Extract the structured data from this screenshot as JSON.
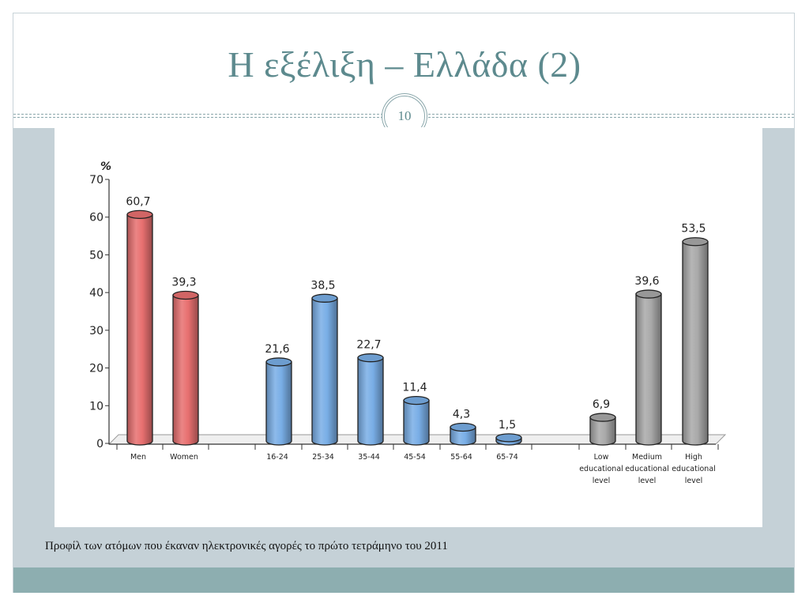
{
  "slide": {
    "title": "Η εξέλιξη – Ελλάδα (2)",
    "slide_number": "10",
    "caption": "Προφίλ των ατόμων που έκαναν ηλεκτρονικές αγορές το πρώτο τετράμηνο του 2011",
    "colors": {
      "title": "#5d8a8e",
      "content_band": "#c5d1d7",
      "footer_band": "#8daeb0"
    }
  },
  "chart_data": {
    "type": "bar",
    "ylabel": "%",
    "ylim": [
      0,
      70
    ],
    "yticks": [
      0,
      10,
      20,
      30,
      40,
      50,
      60,
      70
    ],
    "grid": false,
    "categories": [
      "Men",
      "Women",
      "16-24",
      "25-34",
      "35-44",
      "45-54",
      "55-64",
      "65-74",
      "Low educational level",
      "Medium educational level",
      "High educational level"
    ],
    "category_lines": [
      [
        "Men"
      ],
      [
        "Women"
      ],
      [
        "16-24"
      ],
      [
        "25-34"
      ],
      [
        "35-44"
      ],
      [
        "45-54"
      ],
      [
        "55-64"
      ],
      [
        "65-74"
      ],
      [
        "Low",
        "educational",
        "level"
      ],
      [
        "Medium",
        "educational",
        "level"
      ],
      [
        "High",
        "educational",
        "level"
      ]
    ],
    "values": [
      60.7,
      39.3,
      21.6,
      38.5,
      22.7,
      11.4,
      4.3,
      1.5,
      6.9,
      39.6,
      53.5
    ],
    "value_labels": [
      "60,7",
      "39,3",
      "21,6",
      "38,5",
      "22,7",
      "11,4",
      "4,3",
      "1,5",
      "6,9",
      "39,6",
      "53,5"
    ],
    "groups": [
      {
        "categories": [
          "Men",
          "Women"
        ],
        "color": "#e87070"
      },
      {
        "categories": [
          "16-24",
          "25-34",
          "35-44",
          "45-54",
          "55-64",
          "65-74"
        ],
        "color": "#79aee6"
      },
      {
        "categories": [
          "Low educational level",
          "Medium educational level",
          "High educational level"
        ],
        "color": "#a9a9a9"
      }
    ]
  }
}
